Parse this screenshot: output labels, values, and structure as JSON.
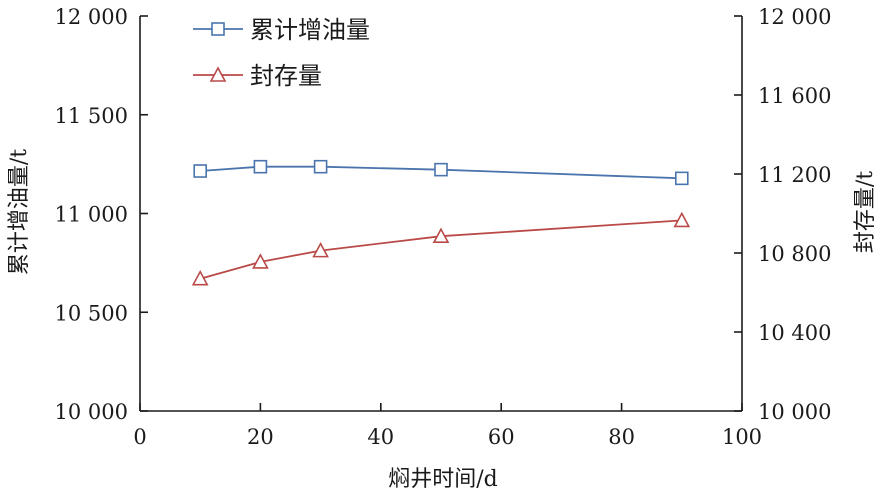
{
  "chart_data": {
    "type": "line",
    "x_axis": {
      "label": "焖井时间/d",
      "min": 0,
      "max": 100,
      "ticks": [
        0,
        20,
        40,
        60,
        80,
        100
      ],
      "tick_labels": [
        "0",
        "20",
        "40",
        "60",
        "80",
        "100"
      ]
    },
    "y_left": {
      "label": "累计增油量/t",
      "min": 10000,
      "max": 12000,
      "ticks": [
        10000,
        10500,
        11000,
        11500,
        12000
      ],
      "tick_labels": [
        "10 000",
        "10 500",
        "11 000",
        "11 500",
        "12 000"
      ]
    },
    "y_right": {
      "label": "封存量/t",
      "min": 10000,
      "max": 12000,
      "ticks": [
        10000,
        10400,
        10800,
        11200,
        11600,
        12000
      ],
      "tick_labels": [
        "10 000",
        "10 400",
        "10 800",
        "11 200",
        "11 600",
        "12 000"
      ]
    },
    "series": [
      {
        "name": "累计增油量",
        "axis": "left",
        "color": "#4a74ad",
        "marker": "square",
        "x": [
          10,
          20,
          30,
          50,
          90
        ],
        "y": [
          11215,
          11237,
          11237,
          11222,
          11178
        ]
      },
      {
        "name": "封存量",
        "axis": "right",
        "color": "#b94a48",
        "marker": "triangle",
        "x": [
          10,
          20,
          30,
          50,
          90
        ],
        "y": [
          10670,
          10755,
          10812,
          10885,
          10965
        ]
      }
    ],
    "legend_position": "top-left",
    "grid": false
  }
}
